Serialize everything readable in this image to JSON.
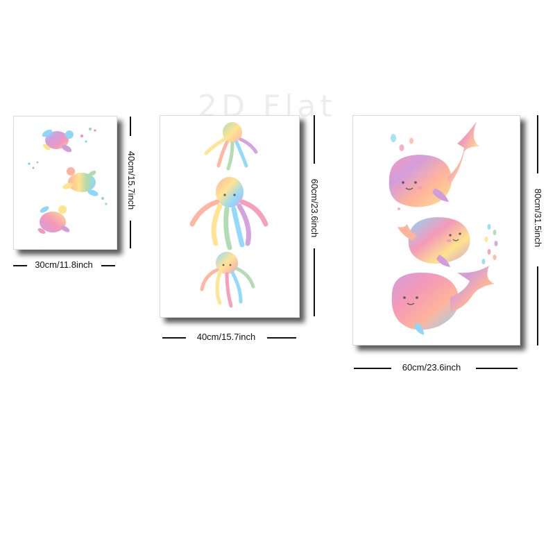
{
  "watermark": "2D Flat",
  "posters": [
    {
      "subject": "sea turtles",
      "width_label": "30cm/11.8inch",
      "height_label": "40cm/15.7inch"
    },
    {
      "subject": "octopuses",
      "width_label": "40cm/15.7inch",
      "height_label": "60cm/23.6inch"
    },
    {
      "subject": "whales",
      "width_label": "60cm/23.6inch",
      "height_label": "80cm/31.5inch"
    }
  ],
  "colors": {
    "pink": "#f48fb1",
    "yellow": "#ffe082",
    "blue": "#81d4fa",
    "green": "#a5d6a7",
    "purple": "#ce93d8",
    "orange": "#ffab91",
    "shadow": "#4a4a4a"
  }
}
